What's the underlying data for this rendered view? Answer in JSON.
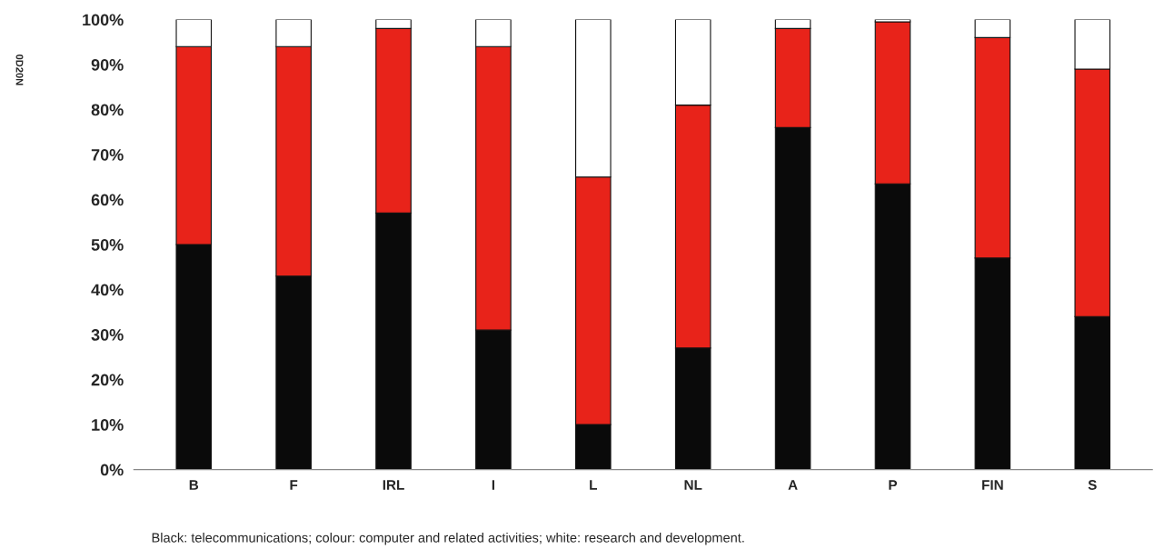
{
  "chart_data": {
    "type": "bar",
    "stacked": true,
    "categories": [
      "B",
      "F",
      "IRL",
      "I",
      "L",
      "NL",
      "A",
      "P",
      "FIN",
      "S"
    ],
    "series": [
      {
        "color": "#0a0a0a",
        "values": [
          50,
          43,
          57,
          31,
          10,
          27,
          76,
          63.5,
          47,
          34
        ]
      },
      {
        "color": "#e8231a",
        "values": [
          44,
          51,
          41,
          63,
          55,
          54,
          22,
          36,
          49,
          55
        ]
      },
      {
        "color": "#ffffff",
        "values": [
          6,
          6,
          2,
          6,
          35,
          19,
          2,
          0.5,
          4,
          11
        ]
      }
    ],
    "ylim": [
      0,
      100
    ],
    "yticks": [
      {
        "value": 0,
        "label": "0%"
      },
      {
        "value": 10,
        "label": "10%"
      },
      {
        "value": 20,
        "label": "20%"
      },
      {
        "value": 30,
        "label": "30%"
      },
      {
        "value": 40,
        "label": "40%"
      },
      {
        "value": 50,
        "label": "50%"
      },
      {
        "value": 60,
        "label": "60%"
      },
      {
        "value": 70,
        "label": "70%"
      },
      {
        "value": 80,
        "label": "80%"
      },
      {
        "value": 90,
        "label": "90%"
      },
      {
        "value": 100,
        "label": "100%"
      }
    ],
    "grid": false,
    "annotations": [
      "Black: telecommunications; colour: computer and related activities; white: research and development.",
      "0D20N"
    ]
  }
}
